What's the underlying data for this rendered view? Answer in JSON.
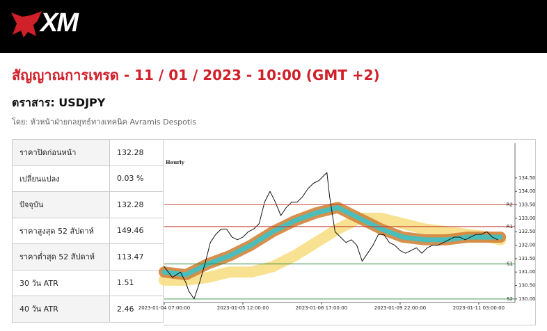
{
  "header": {
    "logo": "XM"
  },
  "title": "สัญญาณการเทรด - 11 / 01 / 2023 - 10:00 (GMT +2)",
  "instrument": "ตราสาร: USDJPY",
  "author": "โดย: หัวหน้าฝ่ายกลยุทธ์ทางเทคนิค Avramis Despotis",
  "table": {
    "rows": [
      [
        "ราคาปิดก่อนหน้า",
        "132.28"
      ],
      [
        "เปลี่ยนแปลง",
        "0.03 %"
      ],
      [
        "ปัจจุบัน",
        "132.28"
      ],
      [
        "ราคาสูงสุด 52 สัปดาห์",
        "149.46"
      ],
      [
        "ราคาต่ำสุด 52 สัปดาห์",
        "113.47"
      ],
      [
        "30 วัน ATR",
        "1.51"
      ],
      [
        "40 วัน ATR",
        "2.46"
      ]
    ]
  },
  "chart_data": {
    "type": "line",
    "subtitle": "Hourly",
    "xlim": [
      3,
      128
    ],
    "ylim": [
      129.92,
      135.79
    ],
    "xticks": [
      {
        "value": 3,
        "label": "2023-01-04 07:00:00"
      },
      {
        "value": 32,
        "label": "2023-01-05 12:00:00"
      },
      {
        "value": 61,
        "label": "2023-01-06 17:00:00"
      },
      {
        "value": 90,
        "label": "2023-01-09 22:00:00"
      },
      {
        "value": 119,
        "label": "2023-01-11 03:00:00"
      }
    ],
    "yticks": [
      {
        "value": 130,
        "label": "130.00"
      },
      {
        "value": 130.5,
        "label": "130.50"
      },
      {
        "value": 131,
        "label": "131.00"
      },
      {
        "value": 131.5,
        "label": "131.50"
      },
      {
        "value": 132,
        "label": "132.00"
      },
      {
        "value": 132.5,
        "label": "132.50"
      },
      {
        "value": 133,
        "label": "133.00"
      },
      {
        "value": 133.5,
        "label": "133.50"
      },
      {
        "value": 134,
        "label": "134.00"
      },
      {
        "value": 134.5,
        "label": "134.50"
      }
    ],
    "levels": [
      {
        "label": "R2",
        "value": 133.5,
        "color": "#c0392b"
      },
      {
        "label": "R1",
        "value": 132.69,
        "color": "#c0392b"
      },
      {
        "label": "S1",
        "value": 131.3,
        "color": "#2e8b3a"
      },
      {
        "label": "S2",
        "value": 130.0,
        "color": "#2e8b3a"
      }
    ],
    "series": [
      {
        "kind": "band",
        "color": "#f7df85",
        "x": [
          3,
          11,
          19,
          27,
          35,
          43,
          51,
          59,
          67,
          75,
          83,
          91,
          99,
          107,
          115,
          123,
          127
        ],
        "values": [
          130.7,
          130.7,
          130.8,
          131.0,
          131.0,
          131.2,
          131.6,
          132.1,
          132.6,
          133.0,
          133.0,
          132.8,
          132.6,
          132.5,
          132.4,
          132.3,
          132.2
        ]
      },
      {
        "kind": "band",
        "color": "#d1843a",
        "x": [
          3,
          11,
          19,
          27,
          35,
          43,
          51,
          59,
          67,
          75,
          83,
          91,
          99,
          107,
          115,
          123,
          127
        ],
        "values": [
          131.0,
          130.9,
          131.3,
          131.6,
          132.0,
          132.5,
          132.9,
          133.2,
          133.4,
          133.0,
          132.6,
          132.3,
          132.2,
          132.2,
          132.3,
          132.3,
          132.3
        ]
      },
      {
        "kind": "core",
        "color": "#3cc3c8",
        "x": [
          3,
          11,
          19,
          27,
          35,
          43,
          51,
          59,
          67,
          75,
          83,
          91,
          99,
          107,
          115,
          123,
          127
        ],
        "values": [
          131.0,
          130.9,
          131.3,
          131.6,
          132.0,
          132.5,
          132.9,
          133.2,
          133.4,
          133.0,
          132.6,
          132.3,
          132.2,
          132.2,
          132.3,
          132.3,
          132.3
        ]
      },
      {
        "kind": "line",
        "color": "#111111",
        "x": [
          3,
          6,
          9,
          11,
          12,
          14,
          16,
          18,
          20,
          22,
          24,
          26,
          28,
          30,
          32,
          34,
          36,
          38,
          40,
          42,
          44,
          46,
          48,
          50,
          52,
          54,
          56,
          58,
          60,
          62,
          63,
          64,
          66,
          68,
          70,
          72,
          74,
          76,
          78,
          80,
          82,
          84,
          86,
          88,
          90,
          92,
          94,
          96,
          98,
          100,
          102,
          104,
          106,
          108,
          110,
          112,
          114,
          116,
          118,
          120,
          122,
          124,
          126
        ],
        "values": [
          131.2,
          130.8,
          131.0,
          130.6,
          130.3,
          130.0,
          130.6,
          131.3,
          132.1,
          132.4,
          132.6,
          132.6,
          132.3,
          132.2,
          132.3,
          132.5,
          132.6,
          132.8,
          133.6,
          134.0,
          133.6,
          133.1,
          133.4,
          133.6,
          133.6,
          133.8,
          134.1,
          134.3,
          134.4,
          134.6,
          134.7,
          133.8,
          132.5,
          132.3,
          132.1,
          132.2,
          132.0,
          131.4,
          131.7,
          132.0,
          132.4,
          132.4,
          132.1,
          132.0,
          131.8,
          131.7,
          131.8,
          131.9,
          131.7,
          131.9,
          132.0,
          132.0,
          132.1,
          132.2,
          132.3,
          132.3,
          132.2,
          132.3,
          132.4,
          132.4,
          132.5,
          132.3,
          132.2
        ]
      }
    ]
  }
}
